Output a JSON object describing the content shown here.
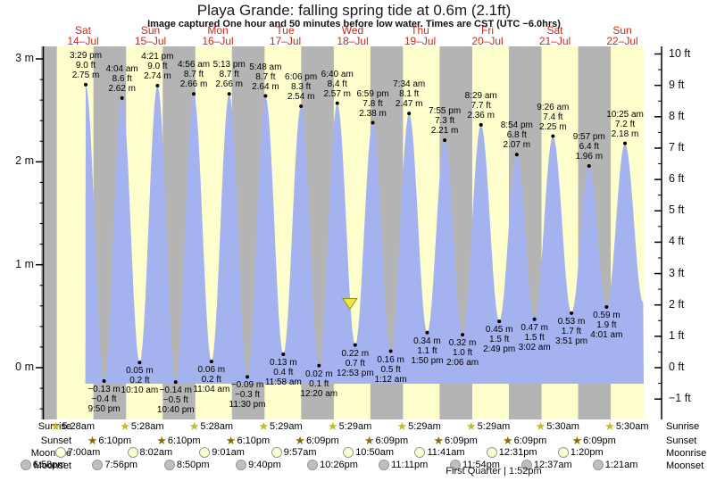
{
  "title": "Playa Grande: falling  spring tide at 0.6m (2.1ft)",
  "subtitle": "Image captured One hour and 50 minutes before low water. Times are CST (UTC −6.0hrs)",
  "footer": "First Quarter | 1:52pm",
  "colors": {
    "night_band": "#b4b4b4",
    "day_band": "#ffffcd",
    "tide_fill": "#a5b2f0",
    "date_label": "#cc2a18",
    "marker_fill": "#e8e44c",
    "marker_stroke": "#94940a",
    "axis": "#000000"
  },
  "chart_data": {
    "type": "area",
    "x_axis": {
      "days": [
        {
          "name": "Sat",
          "date": "14–Jul"
        },
        {
          "name": "Sun",
          "date": "15–Jul"
        },
        {
          "name": "Mon",
          "date": "16–Jul"
        },
        {
          "name": "Tue",
          "date": "17–Jul"
        },
        {
          "name": "Wed",
          "date": "18–Jul"
        },
        {
          "name": "Thu",
          "date": "19–Jul"
        },
        {
          "name": "Fri",
          "date": "20–Jul"
        },
        {
          "name": "Sat",
          "date": "21–Jul"
        },
        {
          "name": "Sun",
          "date": "22–Jul"
        }
      ]
    },
    "y_axis_left": {
      "unit": "m",
      "major_ticks": [
        0,
        1,
        2,
        3
      ],
      "minor_step": 0.2,
      "range": [
        -0.5,
        3.12
      ]
    },
    "y_axis_right": {
      "unit": "ft",
      "major_ticks": [
        -1,
        0,
        1,
        2,
        3,
        4,
        5,
        6,
        7,
        8,
        9,
        10
      ],
      "minor_step": 0.5
    },
    "daylight": {
      "sunrise_hour": 5.47,
      "sunset_hour": 18.16
    },
    "extremes": [
      {
        "type": "high",
        "day": 0,
        "time": "3:29 pm",
        "m": 2.75,
        "ft": 9.0
      },
      {
        "type": "low",
        "day": 0,
        "time": "9:50 pm",
        "m": -0.13,
        "ft": -0.4
      },
      {
        "type": "high",
        "day": 1,
        "time": "4:04 am",
        "m": 2.62,
        "ft": 8.6
      },
      {
        "type": "low",
        "day": 1,
        "time": "10:10 am",
        "m": 0.05,
        "ft": 0.2
      },
      {
        "type": "high",
        "day": 1,
        "time": "4:21 pm",
        "m": 2.74,
        "ft": 9.0
      },
      {
        "type": "low",
        "day": 1,
        "time": "10:40 pm",
        "m": -0.14,
        "ft": -0.5
      },
      {
        "type": "high",
        "day": 2,
        "time": "4:56 am",
        "m": 2.66,
        "ft": 8.7
      },
      {
        "type": "low",
        "day": 2,
        "time": "11:04 am",
        "m": 0.06,
        "ft": 0.2
      },
      {
        "type": "high",
        "day": 2,
        "time": "5:13 pm",
        "m": 2.66,
        "ft": 8.7
      },
      {
        "type": "low",
        "day": 2,
        "time": "11:30 pm",
        "m": -0.09,
        "ft": -0.3
      },
      {
        "type": "high",
        "day": 3,
        "time": "5:48 am",
        "m": 2.64,
        "ft": 8.7
      },
      {
        "type": "low",
        "day": 3,
        "time": "11:58 am",
        "m": 0.13,
        "ft": 0.4
      },
      {
        "type": "high",
        "day": 3,
        "time": "6:06 pm",
        "m": 2.54,
        "ft": 8.3
      },
      {
        "type": "low",
        "day": 4,
        "time": "12:20 am",
        "m": 0.02,
        "ft": 0.1
      },
      {
        "type": "high",
        "day": 4,
        "time": "6:40 am",
        "m": 2.57,
        "ft": 8.4
      },
      {
        "type": "low",
        "day": 4,
        "time": "12:53 pm",
        "m": 0.22,
        "ft": 0.7
      },
      {
        "type": "high",
        "day": 4,
        "time": "6:59 pm",
        "m": 2.38,
        "ft": 7.8
      },
      {
        "type": "low",
        "day": 5,
        "time": "1:12 am",
        "m": 0.16,
        "ft": 0.5
      },
      {
        "type": "high",
        "day": 5,
        "time": "7:34 am",
        "m": 2.47,
        "ft": 8.1
      },
      {
        "type": "low",
        "day": 5,
        "time": "1:50 pm",
        "m": 0.34,
        "ft": 1.1
      },
      {
        "type": "high",
        "day": 5,
        "time": "7:55 pm",
        "m": 2.21,
        "ft": 7.3
      },
      {
        "type": "low",
        "day": 6,
        "time": "2:06 am",
        "m": 0.32,
        "ft": 1.0
      },
      {
        "type": "high",
        "day": 6,
        "time": "8:29 am",
        "m": 2.36,
        "ft": 7.7
      },
      {
        "type": "low",
        "day": 6,
        "time": "2:49 pm",
        "m": 0.45,
        "ft": 1.5
      },
      {
        "type": "high",
        "day": 6,
        "time": "8:54 pm",
        "m": 2.07,
        "ft": 6.8
      },
      {
        "type": "low",
        "day": 7,
        "time": "3:02 am",
        "m": 0.47,
        "ft": 1.5
      },
      {
        "type": "high",
        "day": 7,
        "time": "9:26 am",
        "m": 2.25,
        "ft": 7.4
      },
      {
        "type": "low",
        "day": 7,
        "time": "3:51 pm",
        "m": 0.53,
        "ft": 1.7
      },
      {
        "type": "high",
        "day": 7,
        "time": "9:57 pm",
        "m": 1.96,
        "ft": 6.4
      },
      {
        "type": "low",
        "day": 8,
        "time": "4:01 am",
        "m": 0.59,
        "ft": 1.9
      },
      {
        "type": "high",
        "day": 8,
        "time": "10:25 am",
        "m": 2.18,
        "ft": 7.2
      }
    ],
    "current_time_marker": {
      "day": 4,
      "time": "11:03 am",
      "level_m": 0.62
    }
  },
  "astro": {
    "rows": [
      {
        "label": "Sunrise",
        "icon": "sunrise-star",
        "entries": [
          {
            "time": "5:28am",
            "day": 0
          },
          {
            "time": "5:28am",
            "day": 1
          },
          {
            "time": "5:28am",
            "day": 2
          },
          {
            "time": "5:29am",
            "day": 3
          },
          {
            "time": "5:29am",
            "day": 4
          },
          {
            "time": "5:29am",
            "day": 5
          },
          {
            "time": "5:29am",
            "day": 6
          },
          {
            "time": "5:30am",
            "day": 7
          },
          {
            "time": "5:30am",
            "day": 8
          }
        ]
      },
      {
        "label": "Sunset",
        "icon": "sunset-star",
        "entries": [
          {
            "time": "6:10pm",
            "day": 0
          },
          {
            "time": "6:10pm",
            "day": 1
          },
          {
            "time": "6:10pm",
            "day": 2
          },
          {
            "time": "6:09pm",
            "day": 3
          },
          {
            "time": "6:09pm",
            "day": 4
          },
          {
            "time": "6:09pm",
            "day": 5
          },
          {
            "time": "6:09pm",
            "day": 6
          },
          {
            "time": "6:09pm",
            "day": 7
          }
        ]
      },
      {
        "label": "Moonrise",
        "icon": "moonrise-circle",
        "entries": [
          {
            "time": "7:00am",
            "day": 0
          },
          {
            "time": "8:02am",
            "day": 1
          },
          {
            "time": "9:01am",
            "day": 2
          },
          {
            "time": "9:57am",
            "day": 3
          },
          {
            "time": "10:50am",
            "day": 4
          },
          {
            "time": "11:41am",
            "day": 5
          },
          {
            "time": "12:31pm",
            "day": 6
          },
          {
            "time": "1:20pm",
            "day": 7
          }
        ]
      },
      {
        "label": "Moonset",
        "icon": "moonset-circle",
        "entries": [
          {
            "time": "6:58pm",
            "day": -1
          },
          {
            "time": "7:56pm",
            "day": 0
          },
          {
            "time": "8:50pm",
            "day": 1
          },
          {
            "time": "9:40pm",
            "day": 2
          },
          {
            "time": "10:26pm",
            "day": 3
          },
          {
            "time": "11:11pm",
            "day": 4
          },
          {
            "time": "11:54pm",
            "day": 5
          },
          {
            "time": "12:37am",
            "day": 7
          },
          {
            "time": "1:21am",
            "day": 8
          }
        ]
      }
    ]
  }
}
